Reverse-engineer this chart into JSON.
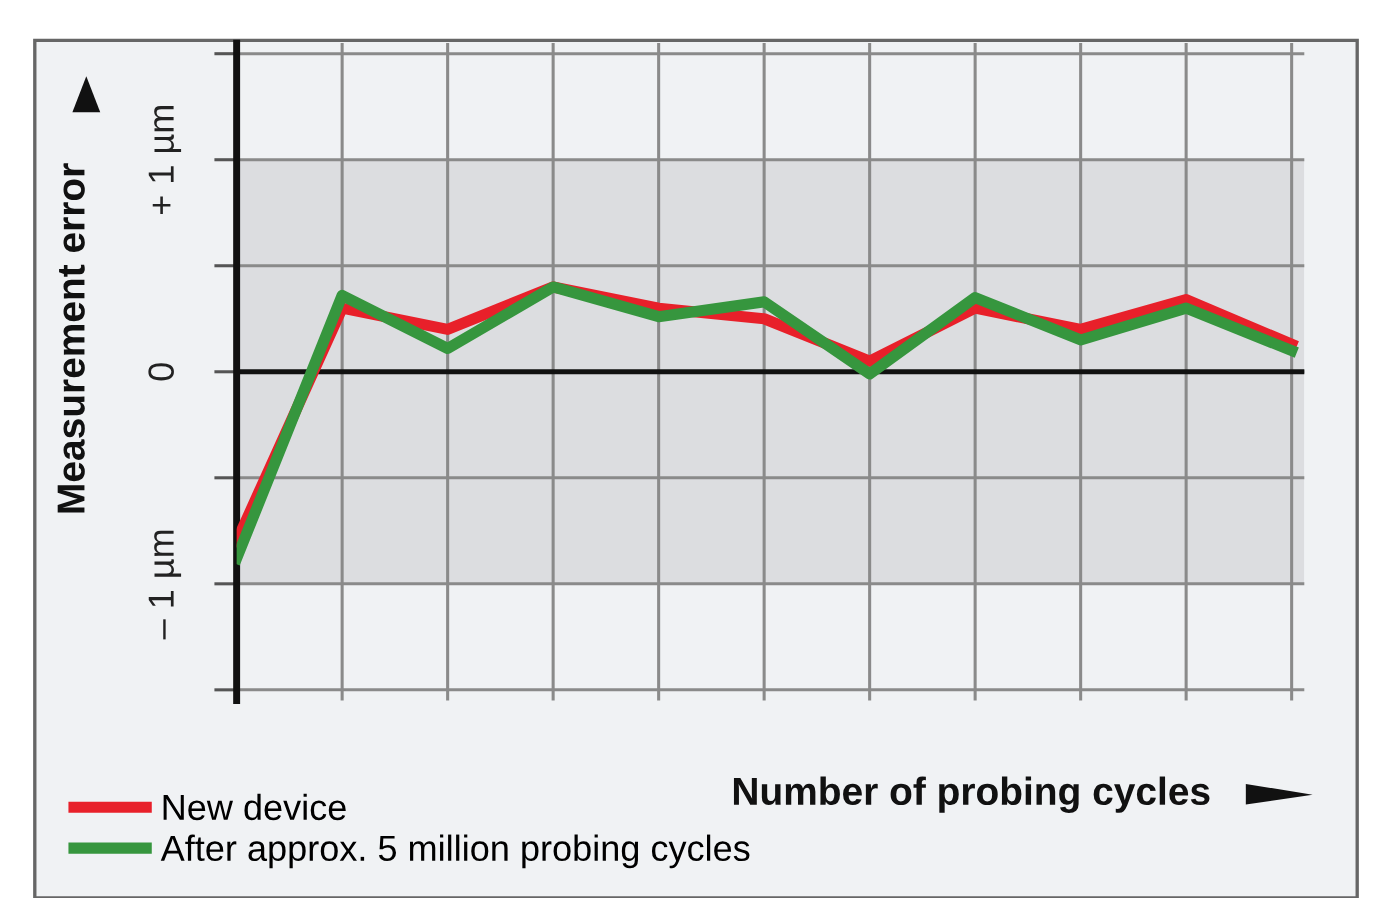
{
  "chart_data": {
    "type": "line",
    "xlabel": "Number of probing cycles",
    "ylabel": "Measurement error",
    "categories": [
      null,
      null,
      null,
      null,
      null,
      null,
      null,
      null,
      null,
      null,
      null
    ],
    "series": [
      {
        "name": "New device",
        "color": "#e8202a",
        "values": [
          -0.8,
          0.3,
          0.2,
          0.4,
          0.3,
          0.25,
          0.05,
          0.3,
          0.2,
          0.34,
          0.13
        ]
      },
      {
        "name": "After approx. 5 million probing cycles",
        "color": "#36963e",
        "values": [
          -0.88,
          0.36,
          0.11,
          0.4,
          0.26,
          0.33,
          -0.01,
          0.35,
          0.15,
          0.3,
          0.1
        ]
      }
    ],
    "ylim": [
      -1.55,
      1.55
    ],
    "yticks": [
      {
        "value": -1.5,
        "label": null
      },
      {
        "value": -1,
        "label": "– 1 µm"
      },
      {
        "value": -0.5,
        "label": null
      },
      {
        "value": 0,
        "label": "0"
      },
      {
        "value": 0.5,
        "label": null
      },
      {
        "value": 1,
        "label": "+ 1 µm"
      },
      {
        "value": 1.5,
        "label": null
      }
    ],
    "bands": [
      {
        "axis": "y",
        "from": -1,
        "to": 1,
        "color": "#dcdde0"
      }
    ],
    "ref_lines": [
      {
        "axis": "y",
        "value": 0,
        "color": "#111111"
      }
    ],
    "grid": true,
    "legend": "bottom left",
    "marker": "none",
    "line_style": "solid"
  }
}
